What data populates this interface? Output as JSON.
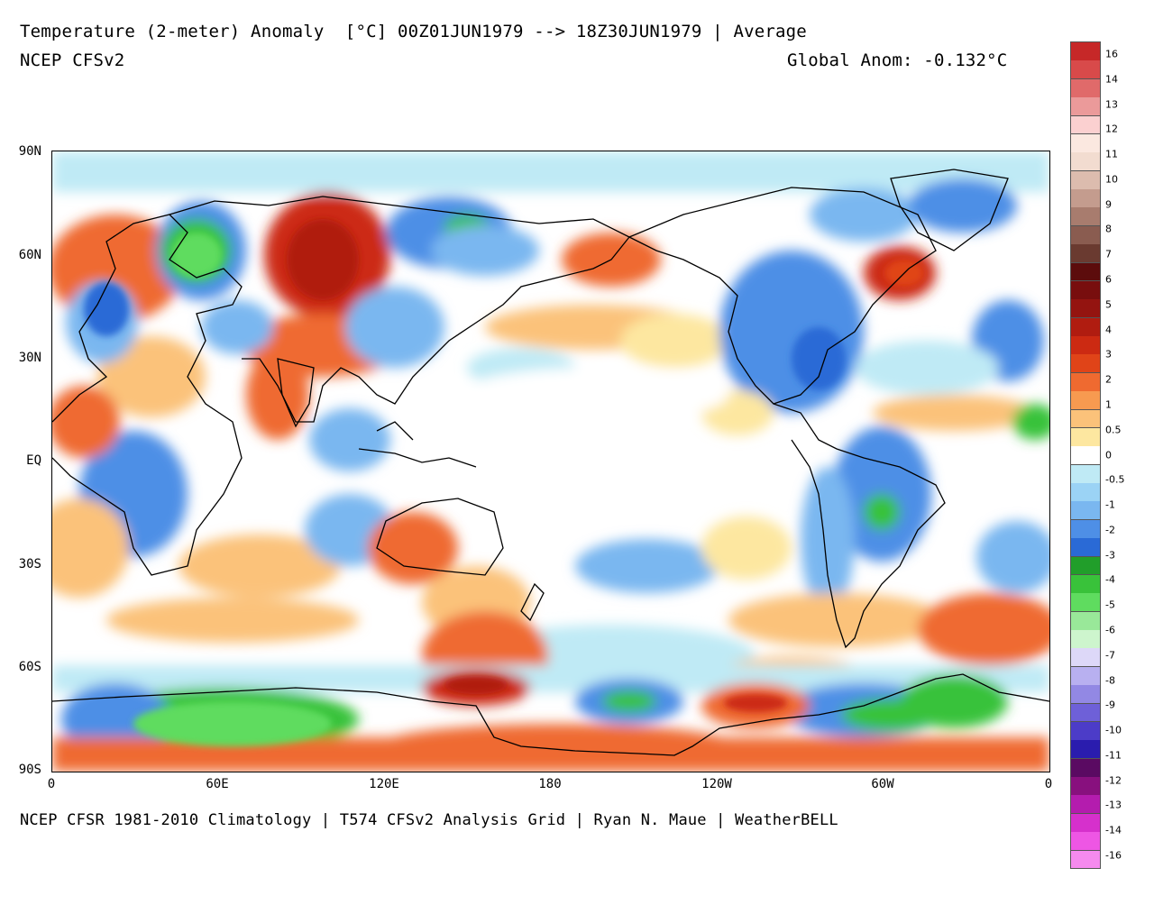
{
  "header": {
    "title": "Temperature (2-meter) Anomaly  [°C] 00Z01JUN1979 --> 18Z30JUN1979 | Average",
    "subtitle": "NCEP CFSv2",
    "global_anom": "Global Anom: -0.132°C"
  },
  "footer": "NCEP CFSR 1981-2010 Climatology | T574 CFSv2 Analysis Grid | Ryan N. Maue | WeatherBELL",
  "axes": {
    "lat_labels": [
      "90N",
      "60N",
      "30N",
      "EQ",
      "30S",
      "60S",
      "90S"
    ],
    "lon_labels": [
      "0",
      "60E",
      "120E",
      "180",
      "120W",
      "60W",
      "0"
    ]
  },
  "colorbar": {
    "labels": [
      "16",
      "14",
      "13",
      "12",
      "11",
      "10",
      "9",
      "8",
      "7",
      "6",
      "5",
      "4",
      "3",
      "2",
      "1",
      "0.5",
      "0",
      "-0.5",
      "-1",
      "-2",
      "-3",
      "-4",
      "-5",
      "-6",
      "-7",
      "-8",
      "-9",
      "-10",
      "-11",
      "-12",
      "-13",
      "-14",
      "-16"
    ],
    "colors": [
      "#c62828",
      "#d84a4a",
      "#e06a6a",
      "#eb9a9a",
      "#fbd0d0",
      "#fbe8e0",
      "#f2dcd0",
      "#dcbcae",
      "#c49c8e",
      "#a87c6e",
      "#8a5c50",
      "#6a3a30",
      "#5c0c0c",
      "#780e0e",
      "#941410",
      "#b01c10",
      "#cc2a12",
      "#e04418",
      "#ef6a30",
      "#f79a50",
      "#fbc27a",
      "#fde7a0",
      "#ffffff",
      "#bfeaf5",
      "#9bd3f5",
      "#7ab7f0",
      "#4e8fe6",
      "#2a6ad6",
      "#219e2a",
      "#39c23a",
      "#5fdc5f",
      "#99e899",
      "#cdf5cd",
      "#ddd8f8",
      "#b8b0f0",
      "#9288e4",
      "#6e60d8",
      "#4c3cc8",
      "#2a1cae",
      "#5a0a62",
      "#88107e",
      "#b41cae",
      "#d630cc",
      "#ee56e4",
      "#f58aee"
    ]
  },
  "map_colors": {
    "ocean_base": "#ffffff",
    "warm": "#fbc27a",
    "warm_light": "#fde7a0",
    "warm_strong": "#ef6a30",
    "hot": "#cc2a12",
    "cool_light": "#bfeaf5",
    "cool": "#7ab7f0",
    "cool_strong": "#2a6ad6",
    "green": "#39c23a",
    "coast": "#000000"
  }
}
